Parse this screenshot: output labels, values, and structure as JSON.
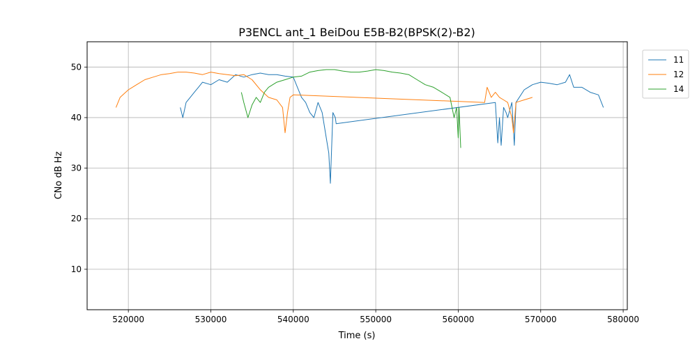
{
  "chart_data": {
    "type": "line",
    "title": "P3ENCL ant_1 BeiDou E5B-B2(BPSK(2)-B2)",
    "xlabel": "Time (s)",
    "ylabel": "CNo dB Hz",
    "xlim": [
      515000,
      580500
    ],
    "ylim": [
      2,
      55
    ],
    "xticks": [
      520000,
      530000,
      540000,
      550000,
      560000,
      570000,
      580000
    ],
    "yticks": [
      10,
      20,
      30,
      40,
      50
    ],
    "grid": true,
    "legend_position": "outside-top-right",
    "series": [
      {
        "name": "11",
        "color": "#1f77b4",
        "x": [
          526300,
          526600,
          527000,
          527500,
          528000,
          528500,
          529000,
          530000,
          531000,
          532000,
          533000,
          534000,
          535000,
          536000,
          537000,
          538000,
          539000,
          540000,
          540500,
          541000,
          541500,
          542000,
          542500,
          543000,
          543500,
          544000,
          544300,
          544500,
          544800,
          545100,
          545200,
          564500,
          564800,
          565000,
          565200,
          565500,
          565800,
          566000,
          566500,
          566800,
          567000,
          568000,
          569000,
          570000,
          571000,
          572000,
          573000,
          573500,
          574000,
          575000,
          576000,
          577000,
          577600
        ],
        "y": [
          42,
          40,
          43,
          44,
          45,
          46,
          47,
          46.5,
          47.5,
          47,
          48.5,
          48,
          48.5,
          48.8,
          48.5,
          48.5,
          48.2,
          48,
          46,
          44,
          43,
          41,
          40,
          43,
          41,
          36,
          33,
          27,
          41,
          40,
          38.8,
          43,
          35,
          40,
          34.5,
          42,
          41,
          40,
          43,
          34.5,
          43,
          45.5,
          46.5,
          47,
          46.8,
          46.5,
          47,
          48.5,
          46,
          46,
          45,
          44.5,
          42
        ]
      },
      {
        "name": "12",
        "color": "#ff7f0e",
        "x": [
          518500,
          519000,
          520000,
          521000,
          522000,
          523000,
          524000,
          525000,
          526000,
          527000,
          528000,
          529000,
          530000,
          531000,
          532000,
          533000,
          534000,
          535000,
          536000,
          537000,
          538000,
          538700,
          539000,
          539300,
          539600,
          540000,
          563200,
          563500,
          564000,
          564500,
          565000,
          565500,
          566000,
          566500,
          566700,
          567000,
          568000,
          569000
        ],
        "y": [
          42,
          44,
          45.5,
          46.5,
          47.5,
          48,
          48.5,
          48.7,
          49,
          49,
          48.8,
          48.5,
          49,
          48.7,
          48.5,
          48.3,
          48.5,
          47.5,
          45.5,
          44,
          43.5,
          42,
          37,
          41,
          44,
          44.5,
          43,
          46,
          44,
          45,
          44,
          43.5,
          43,
          40,
          37,
          43,
          43.5,
          44
        ]
      },
      {
        "name": "14",
        "color": "#2ca02c",
        "x": [
          533700,
          534000,
          534500,
          535000,
          535500,
          536000,
          536500,
          537000,
          538000,
          539000,
          540000,
          541000,
          542000,
          543000,
          544000,
          545000,
          546000,
          547000,
          548000,
          549000,
          550000,
          551000,
          552000,
          553000,
          554000,
          555000,
          556000,
          557000,
          558000,
          559000,
          559500,
          559800,
          560000,
          560100,
          560300
        ],
        "y": [
          45,
          43,
          40,
          42.5,
          44,
          43,
          45,
          46,
          47,
          47.5,
          48,
          48.2,
          49,
          49.3,
          49.5,
          49.5,
          49.2,
          49,
          49,
          49.2,
          49.5,
          49.3,
          49,
          48.8,
          48.5,
          47.5,
          46.5,
          46,
          45,
          44,
          40,
          42,
          36,
          42,
          34
        ]
      }
    ]
  }
}
